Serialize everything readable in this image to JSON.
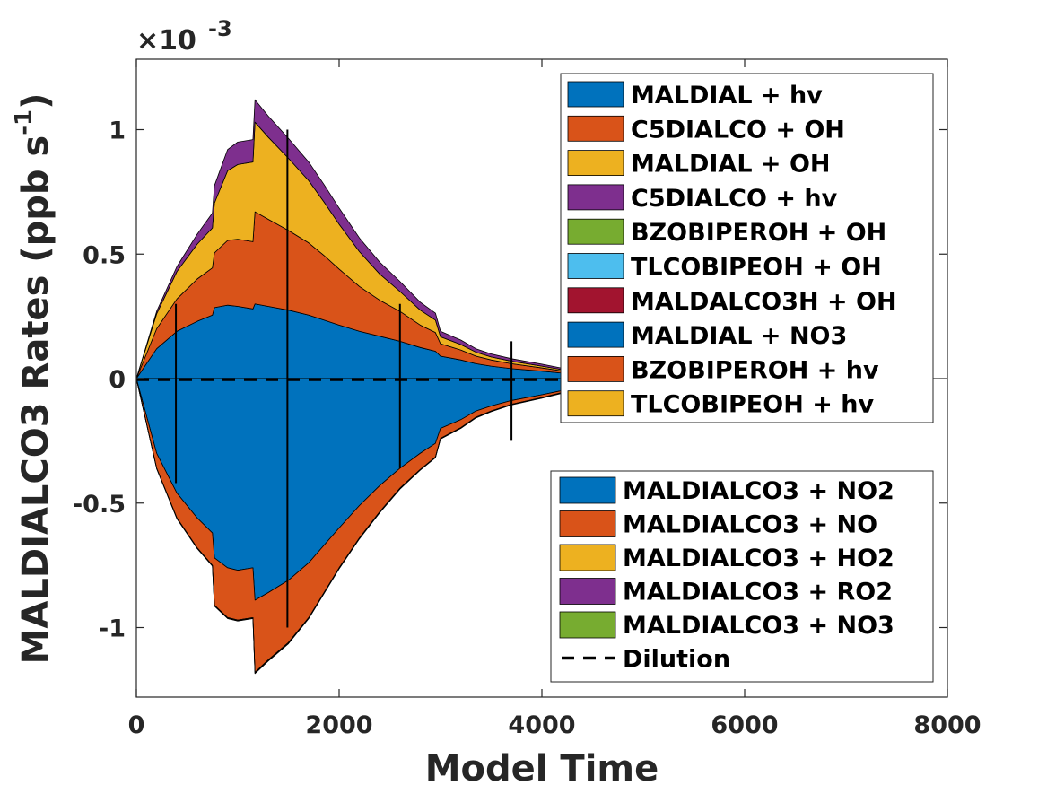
{
  "chart_data": {
    "type": "area",
    "xlabel": "Model Time",
    "ylabel_main": "MALDIALCO3 Rates (ppb s",
    "ylabel_sup": "-1",
    "ylabel_close": ")",
    "exponent_label": "×10",
    "exponent_power": "-3",
    "xlim": [
      0,
      8000
    ],
    "ylim": [
      -1.28,
      1.28
    ],
    "x_ticks": [
      0,
      2000,
      4000,
      6000,
      8000
    ],
    "x_tick_labels": [
      "0",
      "2000",
      "4000",
      "6000",
      "8000"
    ],
    "y_ticks": [
      -1,
      -0.5,
      0,
      0.5,
      1
    ],
    "y_tick_labels": [
      "-1",
      "-0.5",
      "0",
      "0.5",
      "1"
    ],
    "scale": 0.001,
    "grid": false,
    "x": [
      0,
      200,
      400,
      600,
      750,
      770,
      900,
      1000,
      1150,
      1170,
      1300,
      1500,
      1700,
      1850,
      2000,
      2200,
      2400,
      2600,
      2800,
      2950,
      3000,
      3200,
      3350,
      3500,
      3700,
      4000,
      4200,
      4450,
      4600,
      4800,
      5000,
      5200,
      5500,
      5800,
      6000,
      6300,
      6700
    ],
    "production_series": [
      {
        "name": "MALDIAL + hv",
        "color": "#0072BD",
        "values": [
          0,
          0.12,
          0.19,
          0.23,
          0.255,
          0.285,
          0.295,
          0.29,
          0.28,
          0.3,
          0.29,
          0.275,
          0.255,
          0.235,
          0.215,
          0.19,
          0.17,
          0.15,
          0.125,
          0.11,
          0.09,
          0.075,
          0.06,
          0.05,
          0.04,
          0.03,
          0.022,
          0.016,
          0.012,
          0.009,
          0.007,
          0.005,
          0.003,
          0.0022,
          0.0015,
          0.0008,
          0
        ]
      },
      {
        "name": "C5DIALCO + OH",
        "color": "#D95319",
        "values": [
          0,
          0.08,
          0.13,
          0.17,
          0.19,
          0.22,
          0.26,
          0.27,
          0.27,
          0.37,
          0.35,
          0.32,
          0.29,
          0.26,
          0.225,
          0.18,
          0.145,
          0.12,
          0.09,
          0.075,
          0.05,
          0.04,
          0.03,
          0.025,
          0.02,
          0.013,
          0.009,
          0.007,
          0.005,
          0.004,
          0.003,
          0.0022,
          0.0015,
          0.001,
          0.0007,
          0.0004,
          0
        ]
      },
      {
        "name": "MALDIAL + OH",
        "color": "#EDB120",
        "values": [
          0,
          0.06,
          0.11,
          0.14,
          0.16,
          0.2,
          0.28,
          0.3,
          0.32,
          0.36,
          0.33,
          0.29,
          0.25,
          0.215,
          0.18,
          0.14,
          0.105,
          0.08,
          0.06,
          0.05,
          0.028,
          0.022,
          0.016,
          0.012,
          0.01,
          0.007,
          0.005,
          0.004,
          0.003,
          0.0022,
          0.0015,
          0.001,
          0.0007,
          0.0005,
          0.0003,
          0.0002,
          0
        ]
      },
      {
        "name": "C5DIALCO + hv",
        "color": "#7E2F8E",
        "values": [
          0,
          0.01,
          0.02,
          0.04,
          0.06,
          0.07,
          0.085,
          0.09,
          0.09,
          0.09,
          0.085,
          0.08,
          0.075,
          0.07,
          0.065,
          0.055,
          0.048,
          0.04,
          0.032,
          0.028,
          0.022,
          0.018,
          0.014,
          0.012,
          0.01,
          0.008,
          0.006,
          0.005,
          0.004,
          0.003,
          0.0022,
          0.0016,
          0.001,
          0.0007,
          0.0005,
          0.0003,
          0
        ]
      },
      {
        "name": "BZOBIPEROH + OH",
        "color": "#77AC30",
        "values": []
      },
      {
        "name": "TLCOBIPEOH + OH",
        "color": "#4DBEEE",
        "values": []
      },
      {
        "name": "MALDALCO3H + OH",
        "color": "#A2142F",
        "values": []
      },
      {
        "name": "MALDIAL + NO3",
        "color": "#0072BD",
        "values": []
      },
      {
        "name": "BZOBIPEROH + hv",
        "color": "#D95319",
        "values": []
      },
      {
        "name": "TLCOBIPEOH + hv",
        "color": "#EDB120",
        "values": []
      }
    ],
    "loss_series": [
      {
        "name": "MALDIALCO3 + NO2",
        "color": "#0072BD",
        "values": [
          0,
          -0.3,
          -0.46,
          -0.56,
          -0.62,
          -0.72,
          -0.76,
          -0.77,
          -0.76,
          -0.89,
          -0.86,
          -0.81,
          -0.74,
          -0.67,
          -0.6,
          -0.51,
          -0.43,
          -0.36,
          -0.3,
          -0.26,
          -0.2,
          -0.165,
          -0.13,
          -0.11,
          -0.088,
          -0.065,
          -0.048,
          -0.035,
          -0.028,
          -0.021,
          -0.016,
          -0.012,
          -0.008,
          -0.0055,
          -0.004,
          -0.0025,
          0
        ]
      },
      {
        "name": "MALDIALCO3 + NO",
        "color": "#D95319",
        "values": [
          0,
          -0.06,
          -0.1,
          -0.12,
          -0.13,
          -0.19,
          -0.2,
          -0.2,
          -0.2,
          -0.29,
          -0.27,
          -0.25,
          -0.22,
          -0.19,
          -0.16,
          -0.13,
          -0.105,
          -0.08,
          -0.065,
          -0.055,
          -0.04,
          -0.032,
          -0.025,
          -0.02,
          -0.015,
          -0.011,
          -0.008,
          -0.006,
          -0.0045,
          -0.0035,
          -0.0025,
          -0.0018,
          -0.0012,
          -0.0008,
          -0.0006,
          -0.0004,
          0
        ]
      },
      {
        "name": "MALDIALCO3 + HO2",
        "color": "#EDB120",
        "values": [
          0,
          -0.001,
          -0.002,
          -0.002,
          -0.002,
          -0.003,
          -0.003,
          -0.003,
          -0.003,
          -0.004,
          -0.004,
          -0.004,
          -0.003,
          -0.003,
          -0.003,
          -0.003,
          -0.003,
          -0.003,
          -0.002,
          -0.002,
          -0.002,
          -0.002,
          -0.002,
          -0.002,
          -0.002,
          -0.002,
          -0.002,
          -0.002,
          -0.002,
          -0.002,
          -0.002,
          -0.001,
          -0.001,
          -0.001,
          -0.001,
          -0.001,
          0
        ]
      },
      {
        "name": "MALDIALCO3 + RO2",
        "color": "#7E2F8E",
        "values": [
          0,
          -0.001,
          -0.001,
          -0.001,
          -0.001,
          -0.001,
          -0.001,
          -0.001,
          -0.001,
          -0.001,
          -0.001,
          -0.001,
          -0.001,
          -0.001,
          -0.001,
          -0.001,
          -0.001,
          -0.001,
          -0.001,
          -0.001,
          -0.001,
          -0.001,
          -0.001,
          -0.001,
          -0.001,
          -0.001,
          -0.001,
          -0.001,
          -0.001,
          -0.001,
          -0.001,
          -0.001,
          -0.001,
          -0.001,
          -0.001,
          -0.001,
          0
        ]
      },
      {
        "name": "MALDIALCO3 + NO3",
        "color": "#77AC30",
        "values": []
      }
    ],
    "dilution": {
      "name": "Dilution",
      "color": "#000000"
    },
    "spikes": [
      {
        "x": 390,
        "lo": -0.42,
        "hi": 0.3
      },
      {
        "x": 1490,
        "lo": -1.0,
        "hi": 1.0
      },
      {
        "x": 2600,
        "lo": -0.36,
        "hi": 0.3
      },
      {
        "x": 3700,
        "lo": -0.25,
        "hi": 0.15
      },
      {
        "x": 4450,
        "lo": -0.06,
        "hi": 0.04
      },
      {
        "x": 5900,
        "lo": -0.01,
        "hi": 0.005
      }
    ],
    "legend_top_placement": "top-right",
    "legend_bottom_placement": "bottom-right"
  }
}
